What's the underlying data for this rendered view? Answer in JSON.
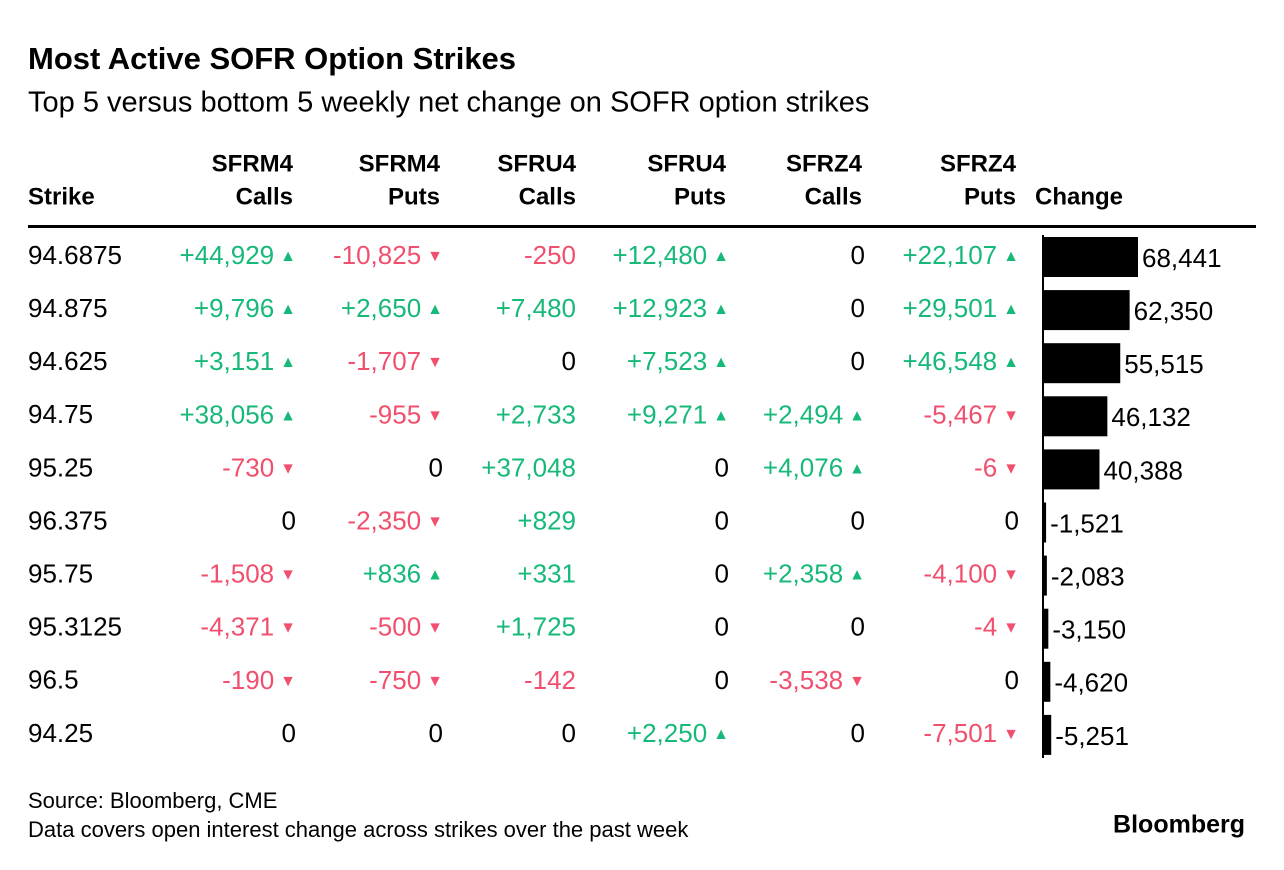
{
  "header": {
    "title": "Most Active SOFR Option Strikes",
    "subtitle": "Top 5 versus bottom 5 weekly net change on SOFR option strikes"
  },
  "table": {
    "columns": [
      [
        "Strike"
      ],
      [
        "SFRM4",
        "Calls"
      ],
      [
        "SFRM4",
        "Puts"
      ],
      [
        "SFRU4",
        "Calls"
      ],
      [
        "SFRU4",
        "Puts"
      ],
      [
        "SFRZ4",
        "Calls"
      ],
      [
        "SFRZ4",
        "Puts"
      ],
      [
        "Change"
      ]
    ],
    "positive_color": "#17b978",
    "negative_color": "#f0506e",
    "bar_color": "#000000",
    "rows": [
      {
        "strike": "94.6875",
        "cells": [
          {
            "text": "+44,929",
            "arrow": "▲"
          },
          {
            "text": "-10,825",
            "arrow": "▼"
          },
          {
            "text": "-250"
          },
          {
            "text": "+12,480",
            "arrow": "▲"
          },
          {
            "text": "0"
          },
          {
            "text": "+22,107",
            "arrow": "▲"
          }
        ],
        "change": {
          "value": 68441,
          "label": "68,441"
        }
      },
      {
        "strike": "94.875",
        "cells": [
          {
            "text": "+9,796",
            "arrow": "▲"
          },
          {
            "text": "+2,650",
            "arrow": "▲"
          },
          {
            "text": "+7,480"
          },
          {
            "text": "+12,923",
            "arrow": "▲"
          },
          {
            "text": "0"
          },
          {
            "text": "+29,501",
            "arrow": "▲"
          }
        ],
        "change": {
          "value": 62350,
          "label": "62,350"
        }
      },
      {
        "strike": "94.625",
        "cells": [
          {
            "text": "+3,151",
            "arrow": "▲"
          },
          {
            "text": "-1,707",
            "arrow": "▼"
          },
          {
            "text": "0"
          },
          {
            "text": "+7,523",
            "arrow": "▲"
          },
          {
            "text": "0"
          },
          {
            "text": "+46,548",
            "arrow": "▲"
          }
        ],
        "change": {
          "value": 55515,
          "label": "55,515"
        }
      },
      {
        "strike": "94.75",
        "cells": [
          {
            "text": "+38,056",
            "arrow": "▲"
          },
          {
            "text": "-955",
            "arrow": "▼"
          },
          {
            "text": "+2,733"
          },
          {
            "text": "+9,271",
            "arrow": "▲"
          },
          {
            "text": "+2,494",
            "arrow": "▲"
          },
          {
            "text": "-5,467",
            "arrow": "▼"
          }
        ],
        "change": {
          "value": 46132,
          "label": "46,132"
        }
      },
      {
        "strike": "95.25",
        "cells": [
          {
            "text": "-730",
            "arrow": "▼"
          },
          {
            "text": "0"
          },
          {
            "text": "+37,048"
          },
          {
            "text": "0"
          },
          {
            "text": "+4,076",
            "arrow": "▲"
          },
          {
            "text": "-6",
            "arrow": "▼"
          }
        ],
        "change": {
          "value": 40388,
          "label": "40,388"
        }
      },
      {
        "strike": "96.375",
        "cells": [
          {
            "text": "0"
          },
          {
            "text": "-2,350",
            "arrow": "▼"
          },
          {
            "text": "+829"
          },
          {
            "text": "0"
          },
          {
            "text": "0"
          },
          {
            "text": "0"
          }
        ],
        "change": {
          "value": -1521,
          "label": "-1,521"
        }
      },
      {
        "strike": "95.75",
        "cells": [
          {
            "text": "-1,508",
            "arrow": "▼"
          },
          {
            "text": "+836",
            "arrow": "▲"
          },
          {
            "text": "+331"
          },
          {
            "text": "0"
          },
          {
            "text": "+2,358",
            "arrow": "▲"
          },
          {
            "text": "-4,100",
            "arrow": "▼"
          }
        ],
        "change": {
          "value": -2083,
          "label": "-2,083"
        }
      },
      {
        "strike": "95.3125",
        "cells": [
          {
            "text": "-4,371",
            "arrow": "▼"
          },
          {
            "text": "-500",
            "arrow": "▼"
          },
          {
            "text": "+1,725"
          },
          {
            "text": "0"
          },
          {
            "text": "0"
          },
          {
            "text": "-4",
            "arrow": "▼"
          }
        ],
        "change": {
          "value": -3150,
          "label": "-3,150"
        }
      },
      {
        "strike": "96.5",
        "cells": [
          {
            "text": "-190",
            "arrow": "▼"
          },
          {
            "text": "-750",
            "arrow": "▼"
          },
          {
            "text": "-142"
          },
          {
            "text": "0"
          },
          {
            "text": "-3,538",
            "arrow": "▼"
          },
          {
            "text": "0"
          }
        ],
        "change": {
          "value": -4620,
          "label": "-4,620"
        }
      },
      {
        "strike": "94.25",
        "cells": [
          {
            "text": "0"
          },
          {
            "text": "0"
          },
          {
            "text": "0"
          },
          {
            "text": "+2,250",
            "arrow": "▲"
          },
          {
            "text": "0"
          },
          {
            "text": "-7,501",
            "arrow": "▼"
          }
        ],
        "change": {
          "value": -5251,
          "label": "-5,251"
        }
      }
    ]
  },
  "footer": {
    "source": "Source: Bloomberg, CME",
    "note": "Data covers open interest change across strikes over the past week",
    "logo": "Bloomberg"
  }
}
